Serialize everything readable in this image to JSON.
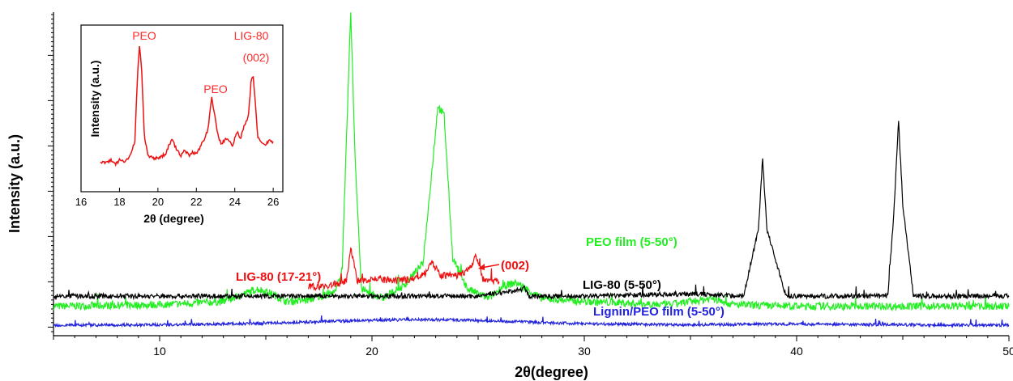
{
  "chart_data": [
    {
      "type": "line",
      "title": "",
      "xlabel": "2θ(degree)",
      "ylabel": "Intensity (a.u.)",
      "xlim": [
        5,
        50
      ],
      "xticks": [
        10,
        20,
        30,
        40,
        50
      ],
      "grid": false,
      "series": [
        {
          "name": "PEO film (5-50°)",
          "color": "#22ee22",
          "x": [
            5,
            10,
            13,
            14.6,
            15.1,
            16,
            17,
            18.3,
            18.6,
            19.0,
            19.2,
            19.5,
            20.5,
            21.5,
            22.0,
            22.4,
            22.9,
            23.1,
            23.4,
            23.8,
            24.5,
            25.5,
            26.2,
            26.8,
            28,
            30,
            32,
            34,
            36,
            37,
            40,
            45,
            50
          ],
          "y": [
            0.065,
            0.07,
            0.08,
            0.12,
            0.11,
            0.08,
            0.085,
            0.11,
            0.19,
            1.0,
            0.55,
            0.12,
            0.09,
            0.13,
            0.17,
            0.2,
            0.55,
            0.7,
            0.67,
            0.22,
            0.12,
            0.09,
            0.13,
            0.14,
            0.09,
            0.08,
            0.075,
            0.07,
            0.09,
            0.07,
            0.065,
            0.065,
            0.065
          ]
        },
        {
          "name": "LIG-80 (17-21°)",
          "color": "#ee1111",
          "x": [
            17,
            18,
            18.8,
            19.0,
            19.3,
            20,
            21,
            22,
            22.5,
            22.8,
            23.2,
            24,
            24.6,
            24.9,
            25.2,
            26
          ],
          "y": [
            0.0,
            0.005,
            0.02,
            0.14,
            0.02,
            0.03,
            0.02,
            0.03,
            0.05,
            0.09,
            0.04,
            0.04,
            0.06,
            0.11,
            0.03,
            0.02
          ]
        },
        {
          "name": "LIG-80 (5-50°)",
          "color": "#000000",
          "x": [
            5,
            10,
            15,
            19,
            20,
            25,
            27.2,
            27.4,
            30,
            35,
            37.5,
            38.2,
            38.4,
            38.6,
            39.5,
            44.3,
            44.6,
            44.8,
            45.0,
            45.5,
            50
          ],
          "y": [
            0.02,
            0.02,
            0.02,
            0.02,
            0.02,
            0.02,
            0.05,
            0.02,
            0.02,
            0.03,
            0.02,
            0.3,
            0.6,
            0.3,
            0.02,
            0.02,
            0.4,
            0.76,
            0.4,
            0.02,
            0.02
          ]
        },
        {
          "name": "Lignin/PEO film (5-50°)",
          "color": "#2222dd",
          "x": [
            5,
            10,
            15,
            18,
            20,
            22,
            24,
            26,
            28,
            30,
            35,
            40,
            45,
            50
          ],
          "y": [
            -0.09,
            -0.088,
            -0.08,
            -0.068,
            -0.063,
            -0.058,
            -0.06,
            -0.068,
            -0.075,
            -0.082,
            -0.088,
            -0.083,
            -0.088,
            -0.09
          ]
        }
      ],
      "annotations": [
        {
          "text": "(002)",
          "x": 25.0,
          "color": "#ee1111"
        }
      ]
    },
    {
      "type": "line",
      "title": "",
      "xlabel": "2θ (degree)",
      "ylabel": "Intensity (a.u.)",
      "xlim": [
        16,
        26.5
      ],
      "xticks": [
        16,
        18,
        20,
        22,
        24,
        26
      ],
      "series": [
        {
          "name": "LIG-80",
          "color": "#ee1111",
          "x": [
            17.0,
            17.3,
            17.6,
            17.8,
            18.0,
            18.3,
            18.6,
            18.8,
            18.95,
            19.05,
            19.15,
            19.3,
            19.5,
            19.8,
            20.1,
            20.4,
            20.6,
            20.75,
            20.9,
            21.2,
            21.4,
            21.6,
            21.8,
            22.0,
            22.2,
            22.4,
            22.6,
            22.8,
            22.95,
            23.1,
            23.3,
            23.6,
            23.9,
            24.1,
            24.3,
            24.5,
            24.7,
            24.85,
            24.95,
            25.05,
            25.2,
            25.4,
            25.6,
            25.8,
            26.0
          ],
          "y": [
            0.08,
            0.07,
            0.09,
            0.06,
            0.09,
            0.08,
            0.13,
            0.22,
            0.7,
            0.88,
            0.72,
            0.24,
            0.12,
            0.1,
            0.11,
            0.13,
            0.2,
            0.23,
            0.18,
            0.12,
            0.16,
            0.12,
            0.14,
            0.13,
            0.18,
            0.23,
            0.3,
            0.52,
            0.4,
            0.27,
            0.2,
            0.24,
            0.18,
            0.29,
            0.24,
            0.33,
            0.38,
            0.63,
            0.68,
            0.52,
            0.24,
            0.21,
            0.19,
            0.23,
            0.21
          ]
        }
      ],
      "annotations": [
        {
          "text": "PEO",
          "x": 19.0
        },
        {
          "text": "PEO",
          "x": 22.8
        },
        {
          "text": "(002)",
          "x": 25.0
        },
        {
          "text": "LIG-80",
          "x": 25.0
        }
      ]
    }
  ]
}
